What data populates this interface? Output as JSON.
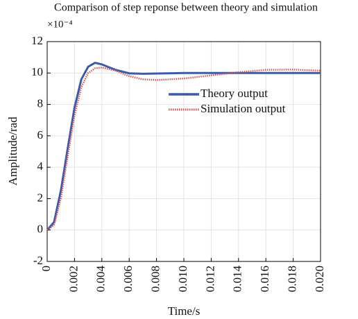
{
  "chart_data": {
    "type": "line",
    "title": "Comparison of step reponse between theory and simulation",
    "y_multiplier": "×10⁻⁴",
    "xlabel": "Time/s",
    "ylabel": "Amplitude/rad",
    "x": [
      0,
      0.0005,
      0.001,
      0.0015,
      0.002,
      0.0025,
      0.003,
      0.0035,
      0.004,
      0.005,
      0.006,
      0.007,
      0.008,
      0.01,
      0.012,
      0.014,
      0.016,
      0.018,
      0.02
    ],
    "series": [
      {
        "name": "Theory output",
        "color": "#3b5ba9",
        "style": "solid",
        "values": [
          0,
          0.5,
          2.5,
          5.2,
          7.8,
          9.6,
          10.4,
          10.65,
          10.55,
          10.2,
          9.98,
          9.95,
          9.97,
          10,
          10,
          10,
          10,
          10,
          10
        ]
      },
      {
        "name": "Simulation output",
        "color": "#d2524f",
        "style": "dotted",
        "values": [
          0,
          0.3,
          2.0,
          4.7,
          7.3,
          9.1,
          10.0,
          10.3,
          10.35,
          10.15,
          9.8,
          9.6,
          9.55,
          9.65,
          9.85,
          10.05,
          10.2,
          10.22,
          10.15
        ]
      }
    ],
    "xlim": [
      0,
      0.02
    ],
    "xticks": [
      0,
      0.002,
      0.004,
      0.006,
      0.008,
      {
        "value": 0.01,
        "label": "0.010"
      },
      0.012,
      0.014,
      0.016,
      0.018,
      {
        "value": 0.02,
        "label": "0.020"
      }
    ],
    "ylim": [
      -2,
      12
    ],
    "yticks": [
      -2,
      0,
      2,
      4,
      6,
      8,
      10,
      12
    ],
    "grid": true,
    "legend": "right"
  }
}
